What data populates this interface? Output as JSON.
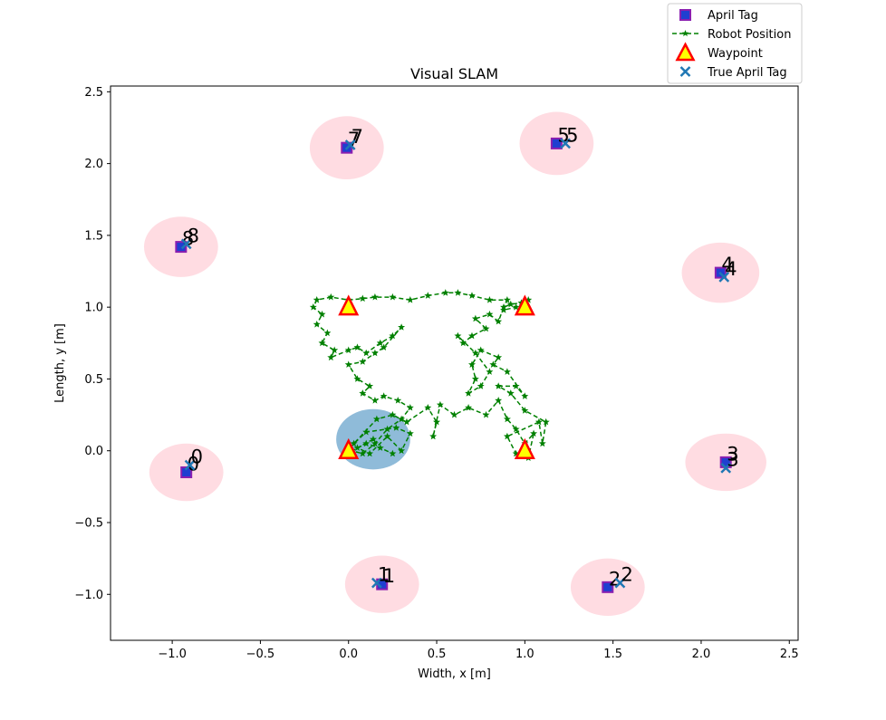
{
  "chart_data": {
    "type": "scatter",
    "title": "Visual SLAM",
    "xlabel": "Width, x [m]",
    "ylabel": "Length, y [m]",
    "xlim": [
      -1.35,
      2.55
    ],
    "ylim": [
      -1.32,
      2.54
    ],
    "x_ticks": [
      -1.0,
      -0.5,
      0.0,
      0.5,
      1.0,
      1.5,
      2.0,
      2.5
    ],
    "x_tick_labels": [
      "−1.0",
      "−0.5",
      "0.0",
      "0.5",
      "1.0",
      "1.5",
      "2.0",
      "2.5"
    ],
    "y_ticks": [
      -1.0,
      -0.5,
      0.0,
      0.5,
      1.0,
      1.5,
      2.0,
      2.5
    ],
    "y_tick_labels": [
      "−1.0",
      "−0.5",
      "0.0",
      "0.5",
      "1.0",
      "1.5",
      "2.0",
      "2.5"
    ],
    "grid": false,
    "legend": {
      "placement": "top-right, outside axes",
      "entries": [
        "April Tag",
        "Robot Position",
        "Waypoint",
        "True April Tag"
      ]
    },
    "colors": {
      "april_tag_fill": "#1f3fd0",
      "april_tag_edge": "#8a1fb0",
      "robot_path": "#008000",
      "waypoint_fill": "#ffff00",
      "waypoint_edge": "#ff0000",
      "true_tag": "#1f77b4",
      "tag_uncertainty": "#ffc0cb",
      "robot_uncertainty": "#1f77b4"
    },
    "april_tags": [
      {
        "id": "0",
        "x": -0.92,
        "y": -0.15,
        "ellipse_rx": 0.21,
        "ellipse_ry": 0.2
      },
      {
        "id": "1",
        "x": 0.19,
        "y": -0.93,
        "ellipse_rx": 0.21,
        "ellipse_ry": 0.2
      },
      {
        "id": "2",
        "x": 1.47,
        "y": -0.95,
        "ellipse_rx": 0.21,
        "ellipse_ry": 0.2
      },
      {
        "id": "3",
        "x": 2.14,
        "y": -0.08,
        "ellipse_rx": 0.23,
        "ellipse_ry": 0.2
      },
      {
        "id": "4",
        "x": 2.11,
        "y": 1.24,
        "ellipse_rx": 0.22,
        "ellipse_ry": 0.21
      },
      {
        "id": "5",
        "x": 1.18,
        "y": 2.14,
        "ellipse_rx": 0.21,
        "ellipse_ry": 0.22
      },
      {
        "id": "7",
        "x": -0.01,
        "y": 2.11,
        "ellipse_rx": 0.21,
        "ellipse_ry": 0.22
      },
      {
        "id": "8",
        "x": -0.95,
        "y": 1.42,
        "ellipse_rx": 0.21,
        "ellipse_ry": 0.21
      }
    ],
    "true_april_tags": [
      {
        "id": "0",
        "x": -0.9,
        "y": -0.1
      },
      {
        "id": "1",
        "x": 0.16,
        "y": -0.92
      },
      {
        "id": "2",
        "x": 1.54,
        "y": -0.92
      },
      {
        "id": "3",
        "x": 2.14,
        "y": -0.12
      },
      {
        "id": "4",
        "x": 2.13,
        "y": 1.21
      },
      {
        "id": "5",
        "x": 1.23,
        "y": 2.14
      },
      {
        "id": "7",
        "x": 0.01,
        "y": 2.13
      },
      {
        "id": "8",
        "x": -0.92,
        "y": 1.44
      }
    ],
    "waypoints": [
      {
        "x": 0.0,
        "y": 0.0
      },
      {
        "x": 1.0,
        "y": 0.0
      },
      {
        "x": 1.0,
        "y": 1.0
      },
      {
        "x": 0.0,
        "y": 1.0
      }
    ],
    "robot_uncertainty": {
      "x": 0.14,
      "y": 0.08,
      "rx": 0.21,
      "ry": 0.21
    },
    "robot_positions": [
      [
        0.14,
        0.08
      ],
      [
        0.05,
        0.02
      ],
      [
        0.12,
        -0.02
      ],
      [
        0.22,
        0.1
      ],
      [
        0.3,
        0.0
      ],
      [
        0.35,
        0.12
      ],
      [
        0.27,
        0.16
      ],
      [
        0.1,
        0.13
      ],
      [
        0.03,
        0.05
      ],
      [
        0.16,
        0.22
      ],
      [
        0.25,
        0.25
      ],
      [
        0.33,
        0.2
      ],
      [
        0.45,
        0.3
      ],
      [
        0.5,
        0.2
      ],
      [
        0.48,
        0.1
      ],
      [
        0.52,
        0.32
      ],
      [
        0.6,
        0.25
      ],
      [
        0.68,
        0.3
      ],
      [
        0.78,
        0.25
      ],
      [
        0.85,
        0.35
      ],
      [
        0.9,
        0.22
      ],
      [
        0.95,
        0.15
      ],
      [
        1.0,
        0.05
      ],
      [
        1.05,
        0.12
      ],
      [
        1.02,
        -0.05
      ],
      [
        0.95,
        -0.02
      ],
      [
        0.9,
        0.1
      ],
      [
        1.08,
        0.2
      ],
      [
        1.1,
        0.05
      ],
      [
        1.12,
        0.2
      ],
      [
        1.0,
        0.28
      ],
      [
        0.92,
        0.4
      ],
      [
        0.85,
        0.45
      ],
      [
        0.95,
        0.45
      ],
      [
        1.0,
        0.38
      ],
      [
        0.9,
        0.55
      ],
      [
        0.82,
        0.6
      ],
      [
        0.85,
        0.65
      ],
      [
        0.75,
        0.7
      ],
      [
        0.7,
        0.6
      ],
      [
        0.72,
        0.5
      ],
      [
        0.68,
        0.4
      ],
      [
        0.75,
        0.45
      ],
      [
        0.8,
        0.55
      ],
      [
        0.72,
        0.68
      ],
      [
        0.62,
        0.8
      ],
      [
        0.65,
        0.75
      ],
      [
        0.7,
        0.8
      ],
      [
        0.78,
        0.85
      ],
      [
        0.72,
        0.92
      ],
      [
        0.8,
        0.95
      ],
      [
        0.85,
        0.9
      ],
      [
        0.88,
        1.0
      ],
      [
        0.92,
        1.02
      ],
      [
        0.98,
        1.03
      ],
      [
        1.02,
        1.05
      ],
      [
        0.95,
        1.0
      ],
      [
        0.88,
        0.98
      ],
      [
        0.9,
        1.05
      ],
      [
        0.8,
        1.05
      ],
      [
        0.7,
        1.08
      ],
      [
        0.62,
        1.1
      ],
      [
        0.55,
        1.1
      ],
      [
        0.45,
        1.08
      ],
      [
        0.35,
        1.05
      ],
      [
        0.25,
        1.07
      ],
      [
        0.15,
        1.07
      ],
      [
        0.08,
        1.06
      ],
      [
        0.0,
        1.05
      ],
      [
        -0.1,
        1.07
      ],
      [
        -0.18,
        1.05
      ],
      [
        -0.2,
        1.0
      ],
      [
        -0.15,
        0.95
      ],
      [
        -0.18,
        0.88
      ],
      [
        -0.12,
        0.82
      ],
      [
        -0.15,
        0.75
      ],
      [
        -0.08,
        0.7
      ],
      [
        -0.1,
        0.65
      ],
      [
        0.0,
        0.7
      ],
      [
        0.05,
        0.72
      ],
      [
        0.1,
        0.68
      ],
      [
        0.18,
        0.75
      ],
      [
        0.25,
        0.8
      ],
      [
        0.3,
        0.86
      ],
      [
        0.2,
        0.72
      ],
      [
        0.15,
        0.68
      ],
      [
        0.08,
        0.62
      ],
      [
        0.0,
        0.6
      ],
      [
        0.05,
        0.5
      ],
      [
        0.12,
        0.45
      ],
      [
        0.08,
        0.4
      ],
      [
        0.15,
        0.35
      ],
      [
        0.2,
        0.38
      ],
      [
        0.28,
        0.35
      ],
      [
        0.35,
        0.3
      ],
      [
        0.3,
        0.22
      ],
      [
        0.22,
        0.15
      ],
      [
        0.15,
        0.05
      ],
      [
        0.08,
        -0.02
      ],
      [
        0.02,
        0.0
      ],
      [
        0.1,
        0.05
      ],
      [
        0.18,
        0.02
      ],
      [
        0.25,
        -0.02
      ]
    ]
  }
}
